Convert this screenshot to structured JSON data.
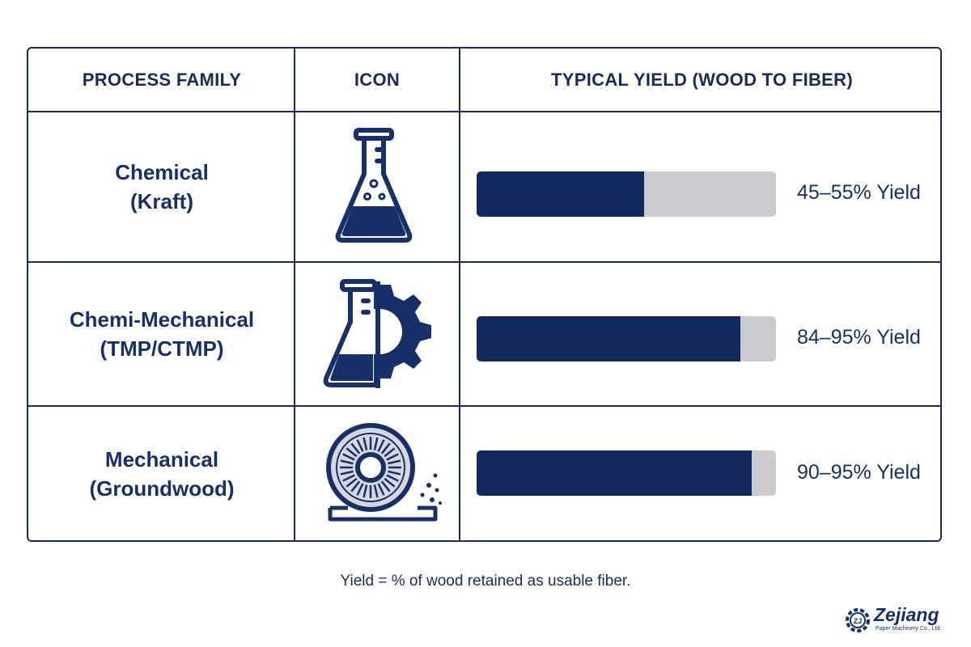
{
  "header": {
    "col1": "PROCESS FAMILY",
    "col2": "ICON",
    "col3": "TYPICAL YIELD (WOOD TO FIBER)"
  },
  "rows": [
    {
      "line1": "Chemical",
      "line2": "(Kraft)",
      "icon": "flask-icon",
      "yield_label": "45–55% Yield"
    },
    {
      "line1": "Chemi-Mechanical",
      "line2": "(TMP/CTMP)",
      "icon": "flask-gear-icon",
      "yield_label": "84–95% Yield"
    },
    {
      "line1": "Mechanical",
      "line2": "(Groundwood)",
      "icon": "grinder-wheel-icon",
      "yield_label": "90–95% Yield"
    }
  ],
  "footnote": "Yield = % of wood retained as usable fiber.",
  "logo": {
    "name": "Zejiang",
    "subtitle": "Paper Machinery Co., Ltd."
  },
  "chart_data": {
    "type": "bar",
    "categories": [
      "Chemical (Kraft)",
      "Chemi-Mechanical (TMP/CTMP)",
      "Mechanical (Groundwood)"
    ],
    "values": [
      56,
      88,
      92
    ],
    "value_unit": "percent of bar filled",
    "data_labels": [
      "45–55% Yield",
      "84–95% Yield",
      "90–95% Yield"
    ],
    "orientation": "horizontal",
    "xlim": [
      0,
      100
    ],
    "colors": {
      "fill": "#12295e",
      "track": "#c9cbcf",
      "text": "#17306a"
    }
  }
}
